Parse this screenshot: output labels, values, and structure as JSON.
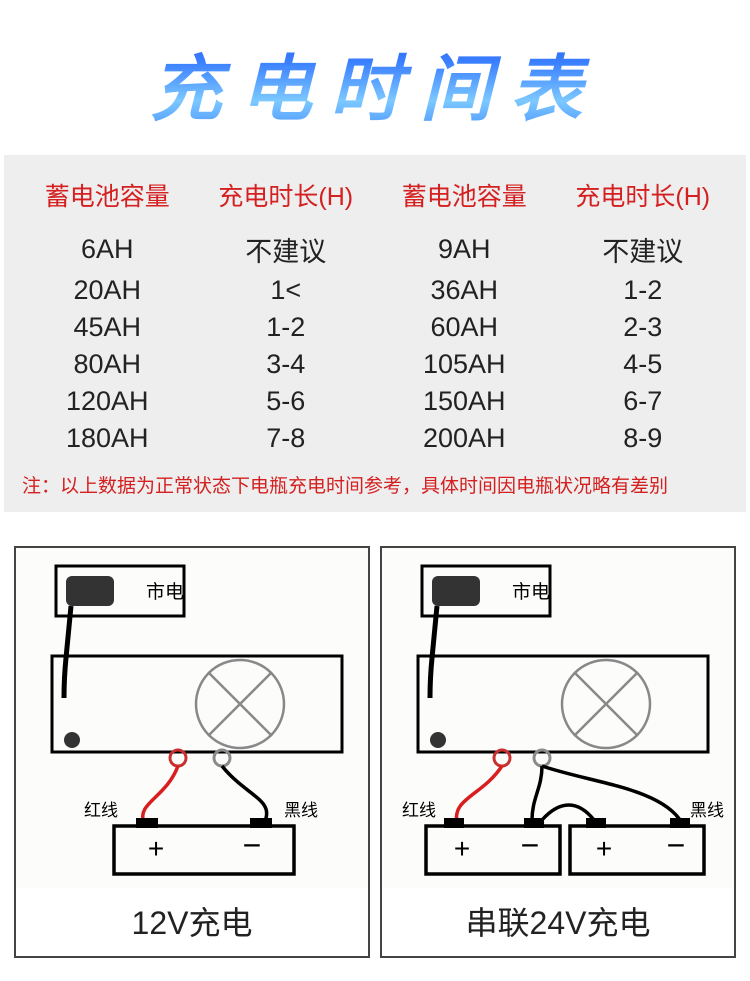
{
  "title": "充电时间表",
  "table": {
    "headers": [
      "蓄电池容量",
      "充电时长(H)",
      "蓄电池容量",
      "充电时长(H)"
    ],
    "rows": [
      [
        "6AH",
        "不建议",
        "9AH",
        "不建议"
      ],
      [
        "20AH",
        "1<",
        "36AH",
        "1-2"
      ],
      [
        "45AH",
        "1-2",
        "60AH",
        "2-3"
      ],
      [
        "80AH",
        "3-4",
        "105AH",
        "4-5"
      ],
      [
        "120AH",
        "5-6",
        "150AH",
        "6-7"
      ],
      [
        "180AH",
        "7-8",
        "200AH",
        "8-9"
      ]
    ],
    "header_color": "#d42020",
    "cell_color": "#222222",
    "bg_color": "#eeeeee",
    "header_fontsize": 25,
    "cell_fontsize": 27
  },
  "note": "注：以上数据为正常状态下电瓶充电时间参考，具体时间因电瓶状况略有差别",
  "diagrams": {
    "mains_label": "市电",
    "red_wire_label": "红线",
    "black_wire_label": "黑线",
    "left_caption": "12V充电",
    "right_caption": "串联24V充电",
    "colors": {
      "stroke": "#000000",
      "red_wire": "#d81e1e",
      "black_wire": "#000000",
      "terminal_red": "#c83030",
      "terminal_gray": "#8a8a8a",
      "plug_fill": "#333333",
      "bg": "#fcfcfb"
    },
    "label_fontsize": 17,
    "mains_fontsize": 19,
    "sign_fontsize": 28
  }
}
